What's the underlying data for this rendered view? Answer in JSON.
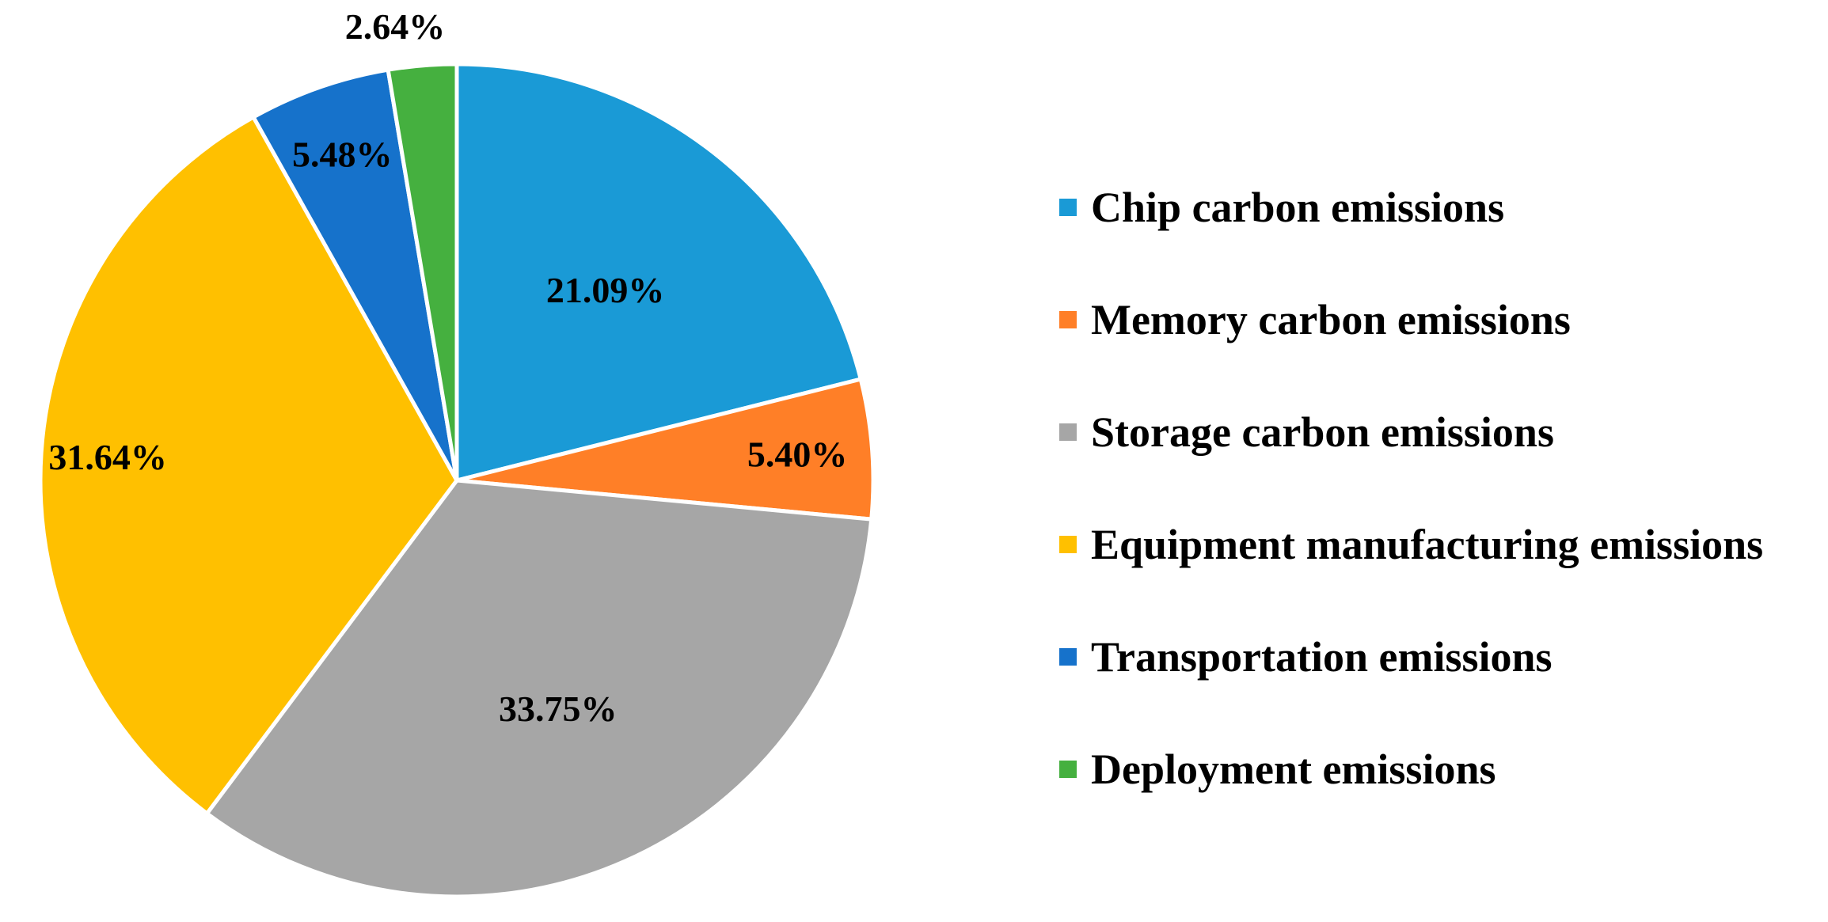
{
  "chart_data": {
    "type": "pie",
    "categories": [
      "Chip carbon emissions",
      "Memory carbon emissions",
      "Storage carbon emissions",
      "Equipment manufacturing emissions",
      "Transportation emissions",
      "Deployment emissions"
    ],
    "values": [
      21.09,
      5.4,
      33.75,
      31.64,
      5.48,
      2.64
    ],
    "labels": [
      "21.09%",
      "5.40%",
      "33.75%",
      "31.64%",
      "5.48%",
      "2.64%"
    ],
    "colors": [
      "#1A9AD6",
      "#FF7F27",
      "#A6A6A6",
      "#FFC000",
      "#1672CB",
      "#45B03F"
    ],
    "start_angle": "12 o'clock",
    "direction": "clockwise",
    "legend_position": "right",
    "title": ""
  }
}
